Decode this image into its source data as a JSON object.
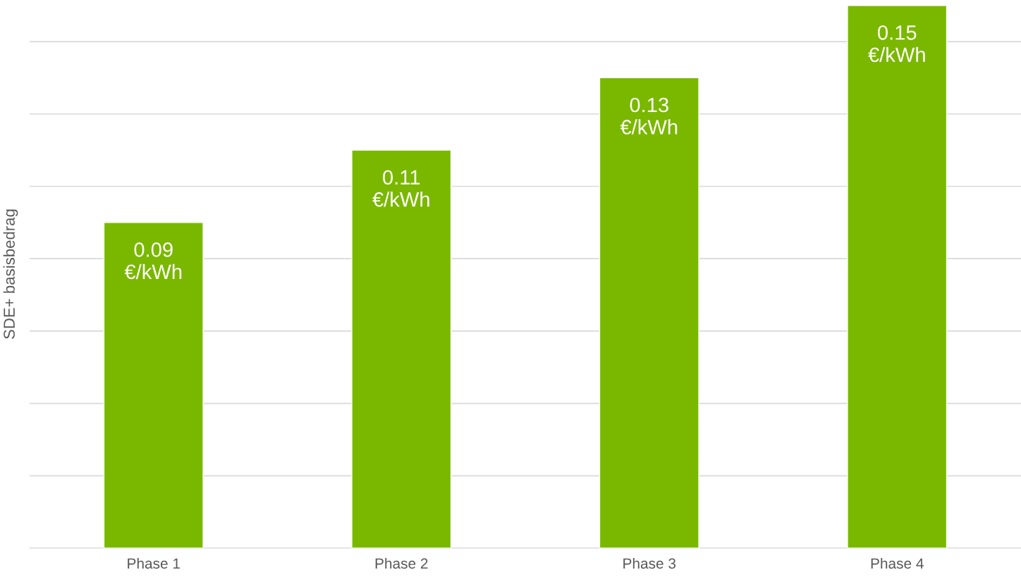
{
  "chart_data": {
    "type": "bar",
    "ylabel": "SDE+ basisbedrag",
    "categories": [
      "Phase 1",
      "Phase 2",
      "Phase 3",
      "Phase 4"
    ],
    "values": [
      0.09,
      0.11,
      0.13,
      0.15
    ],
    "color": "#7ab800",
    "value_labels": [
      "0.09\n€/kWh",
      "0.11\n€/kWh",
      "0.13\n€/kWh",
      "0.15\n€/kWh"
    ],
    "yticks": [
      {
        "value": 0,
        "label": null
      },
      {
        "value": 0.02,
        "label": null
      },
      {
        "value": 0.04,
        "label": null
      },
      {
        "value": 0.06,
        "label": null
      },
      {
        "value": 0.08,
        "label": null
      },
      {
        "value": 0.1,
        "label": null
      },
      {
        "value": 0.12,
        "label": null
      },
      {
        "value": 0.14,
        "label": null
      }
    ],
    "grid": "y",
    "tick_labels": "x"
  }
}
